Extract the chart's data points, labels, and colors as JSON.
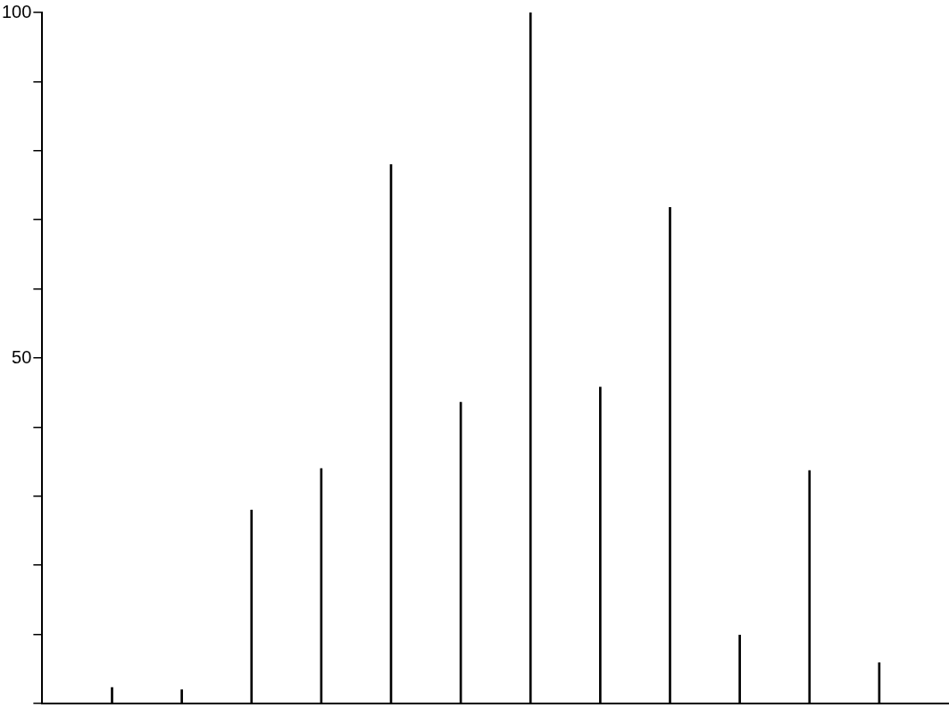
{
  "chart_data": {
    "type": "bar",
    "categories": [
      null,
      null,
      null,
      null,
      null,
      null,
      null,
      null,
      null,
      null,
      null,
      null
    ],
    "values": [
      2.3,
      2,
      28,
      34,
      78,
      43.6,
      100,
      45.8,
      71.8,
      9.9,
      33.7,
      5.9
    ],
    "color": "#000000",
    "ylim": [
      0,
      100
    ],
    "yticks": [
      {
        "value": 0,
        "label": null
      },
      {
        "value": 10,
        "label": null
      },
      {
        "value": 20,
        "label": null
      },
      {
        "value": 30,
        "label": null
      },
      {
        "value": 40,
        "label": null
      },
      50,
      {
        "value": 60,
        "label": null
      },
      {
        "value": 70,
        "label": null
      },
      {
        "value": 80,
        "label": null
      },
      {
        "value": 90,
        "label": null
      },
      100
    ],
    "tick_labels": "y"
  }
}
